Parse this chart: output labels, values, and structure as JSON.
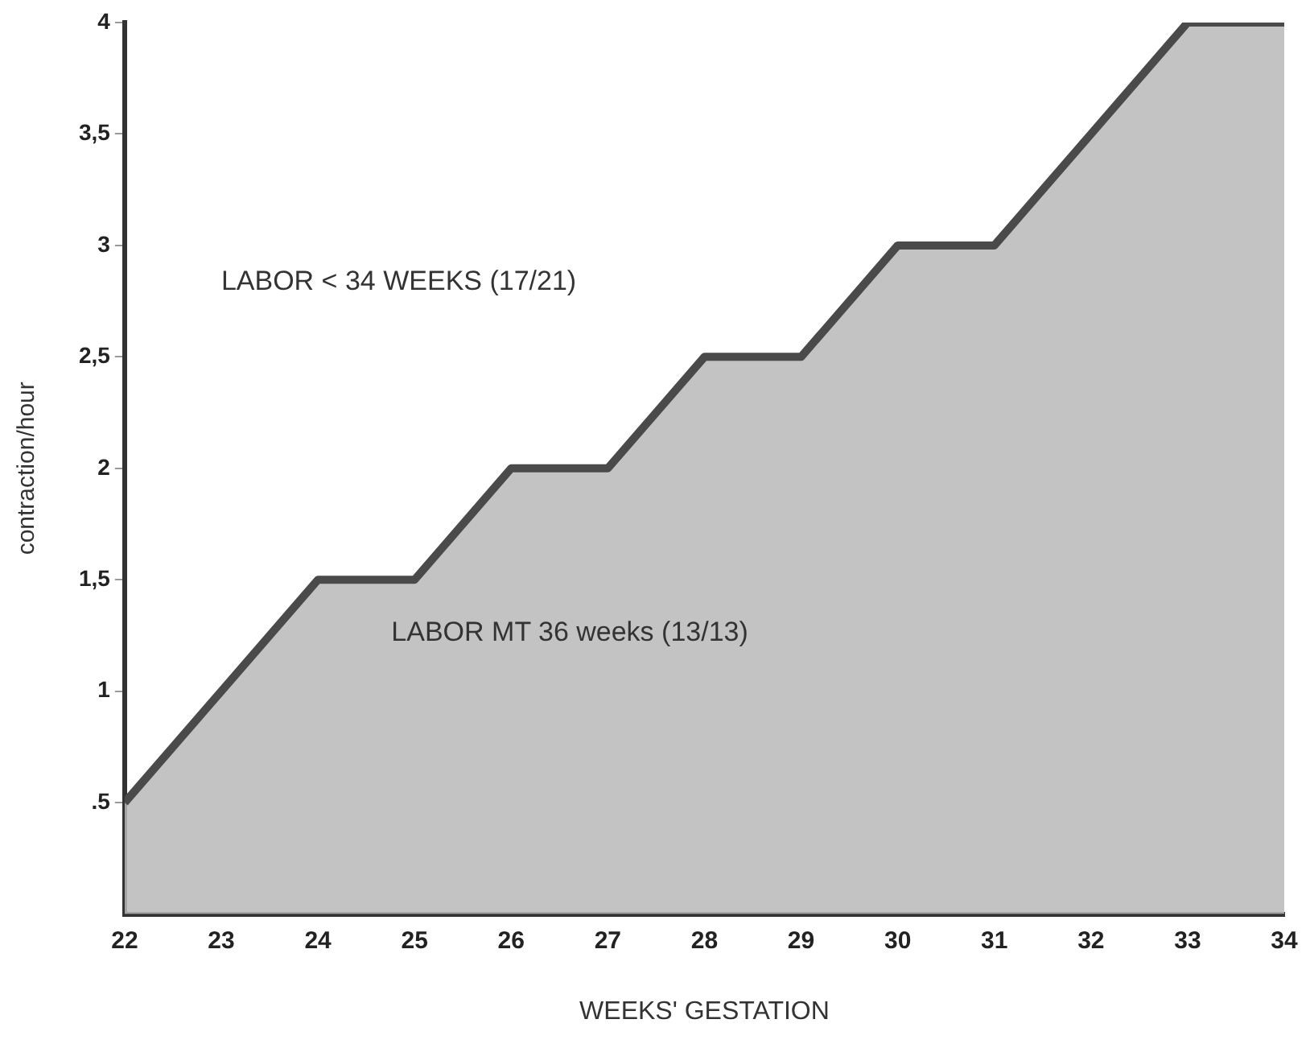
{
  "chart_data": {
    "type": "area",
    "xlabel": "WEEKS' GESTATION",
    "ylabel": "contraction/hour",
    "x": [
      22,
      23,
      24,
      25,
      26,
      27,
      28,
      29,
      30,
      31,
      32,
      33,
      34
    ],
    "series": [
      {
        "color": "#4a4a4a",
        "values": [
          0.5,
          1,
          1.5,
          1.5,
          2,
          2,
          2.5,
          2.5,
          3,
          3,
          3.5,
          4,
          4
        ]
      }
    ],
    "xlim": [
      22,
      34
    ],
    "xticks": [
      22,
      23,
      24,
      25,
      26,
      27,
      28,
      29,
      30,
      31,
      32,
      33,
      34
    ],
    "ylim": [
      0,
      4
    ],
    "yticks": [
      {
        "value": 0.5,
        "label": ".5"
      },
      1,
      {
        "value": 1.5,
        "label": "1,5"
      },
      2,
      {
        "value": 2.5,
        "label": "2,5"
      },
      3,
      {
        "value": 3.5,
        "label": "3,5"
      },
      4
    ],
    "annotations": [
      "LABOR < 34 WEEKS (17/21)",
      "LABOR MT 36 weeks (13/13)"
    ],
    "grid": false,
    "legend": false
  }
}
